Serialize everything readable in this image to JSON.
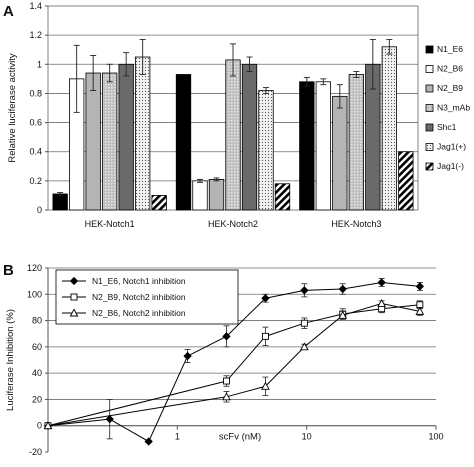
{
  "panels": {
    "a_letter": "A",
    "b_letter": "B"
  },
  "chart_data": [
    {
      "type": "bar",
      "panel": "A",
      "title": "",
      "xlabel": "",
      "ylabel": "Relative luciferase activity",
      "ylim": [
        0,
        1.4
      ],
      "yticks": [
        "0",
        "0.2",
        "0.4",
        "0.6",
        "0.8",
        "1",
        "1.2",
        "1.4"
      ],
      "grid": true,
      "legend_position": "right",
      "categories": [
        "HEK-Notch1",
        "HEK-Notch2",
        "HEK-Notch3"
      ],
      "series": [
        {
          "name": "N1_E6",
          "fill": "solid-black",
          "values": [
            0.11,
            0.93,
            0.88
          ],
          "errors": [
            0.01,
            0.0,
            0.03
          ]
        },
        {
          "name": "N2_B6",
          "fill": "white",
          "values": [
            0.9,
            0.2,
            0.88
          ],
          "errors": [
            0.23,
            0.01,
            0.02
          ]
        },
        {
          "name": "N2_B9",
          "fill": "light-gray",
          "values": [
            0.94,
            0.21,
            0.78
          ],
          "errors": [
            0.12,
            0.01,
            0.08
          ]
        },
        {
          "name": "N3_mAb",
          "fill": "gray-hatch",
          "values": [
            0.94,
            1.03,
            0.93
          ],
          "errors": [
            0.06,
            0.11,
            0.02
          ]
        },
        {
          "name": "Shc1",
          "fill": "dark-gray",
          "values": [
            1.0,
            1.0,
            1.0
          ],
          "errors": [
            0.08,
            0.05,
            0.17
          ]
        },
        {
          "name": "Jag1(+)",
          "fill": "dotted",
          "values": [
            1.05,
            0.82,
            1.12
          ],
          "errors": [
            0.12,
            0.02,
            0.05
          ]
        },
        {
          "name": "Jag1(-)",
          "fill": "black-stripe",
          "values": [
            0.1,
            0.18,
            0.4
          ],
          "errors": [
            0.0,
            0.0,
            0.0
          ]
        }
      ]
    },
    {
      "type": "line",
      "panel": "B",
      "title": "",
      "xlabel": "scFv (nM)",
      "ylabel": "Luciferase Inhibition (%)",
      "xscale": "log",
      "xlim": [
        0.1,
        100
      ],
      "xticks": [
        "1",
        "10",
        "100"
      ],
      "ylim": [
        -20,
        120
      ],
      "yticks": [
        "-20",
        "0",
        "20",
        "40",
        "60",
        "80",
        "100",
        "120"
      ],
      "grid": true,
      "legend_position": "top-left",
      "series": [
        {
          "name": "N1_E6, Notch1 inhibition",
          "marker": "filled-diamond",
          "points": [
            [
              0.1,
              0
            ],
            [
              0.3,
              5
            ],
            [
              0.6,
              -12
            ],
            [
              1.2,
              53
            ],
            [
              2.4,
              68
            ],
            [
              4.8,
              97
            ],
            [
              9.6,
              103
            ],
            [
              19,
              104
            ],
            [
              38,
              109
            ],
            [
              75,
              106
            ]
          ],
          "errors": [
            0,
            15,
            1,
            5,
            8,
            3,
            5,
            4,
            3,
            3
          ]
        },
        {
          "name": "N2_B9, Notch2 inhibition",
          "marker": "open-square",
          "points": [
            [
              0.1,
              0
            ],
            [
              2.4,
              34
            ],
            [
              4.8,
              68
            ],
            [
              9.6,
              78
            ],
            [
              19,
              85
            ],
            [
              38,
              89
            ],
            [
              75,
              92
            ]
          ],
          "errors": [
            0,
            4,
            7,
            4,
            4,
            3,
            3
          ]
        },
        {
          "name": "N2_B6, Notch2 inhibition",
          "marker": "open-triangle",
          "points": [
            [
              0.1,
              0
            ],
            [
              2.4,
              22
            ],
            [
              4.8,
              30
            ],
            [
              9.6,
              60
            ],
            [
              19,
              84
            ],
            [
              38,
              93
            ],
            [
              75,
              87
            ]
          ],
          "errors": [
            0,
            4,
            7,
            2,
            3,
            2,
            3
          ]
        }
      ]
    }
  ]
}
